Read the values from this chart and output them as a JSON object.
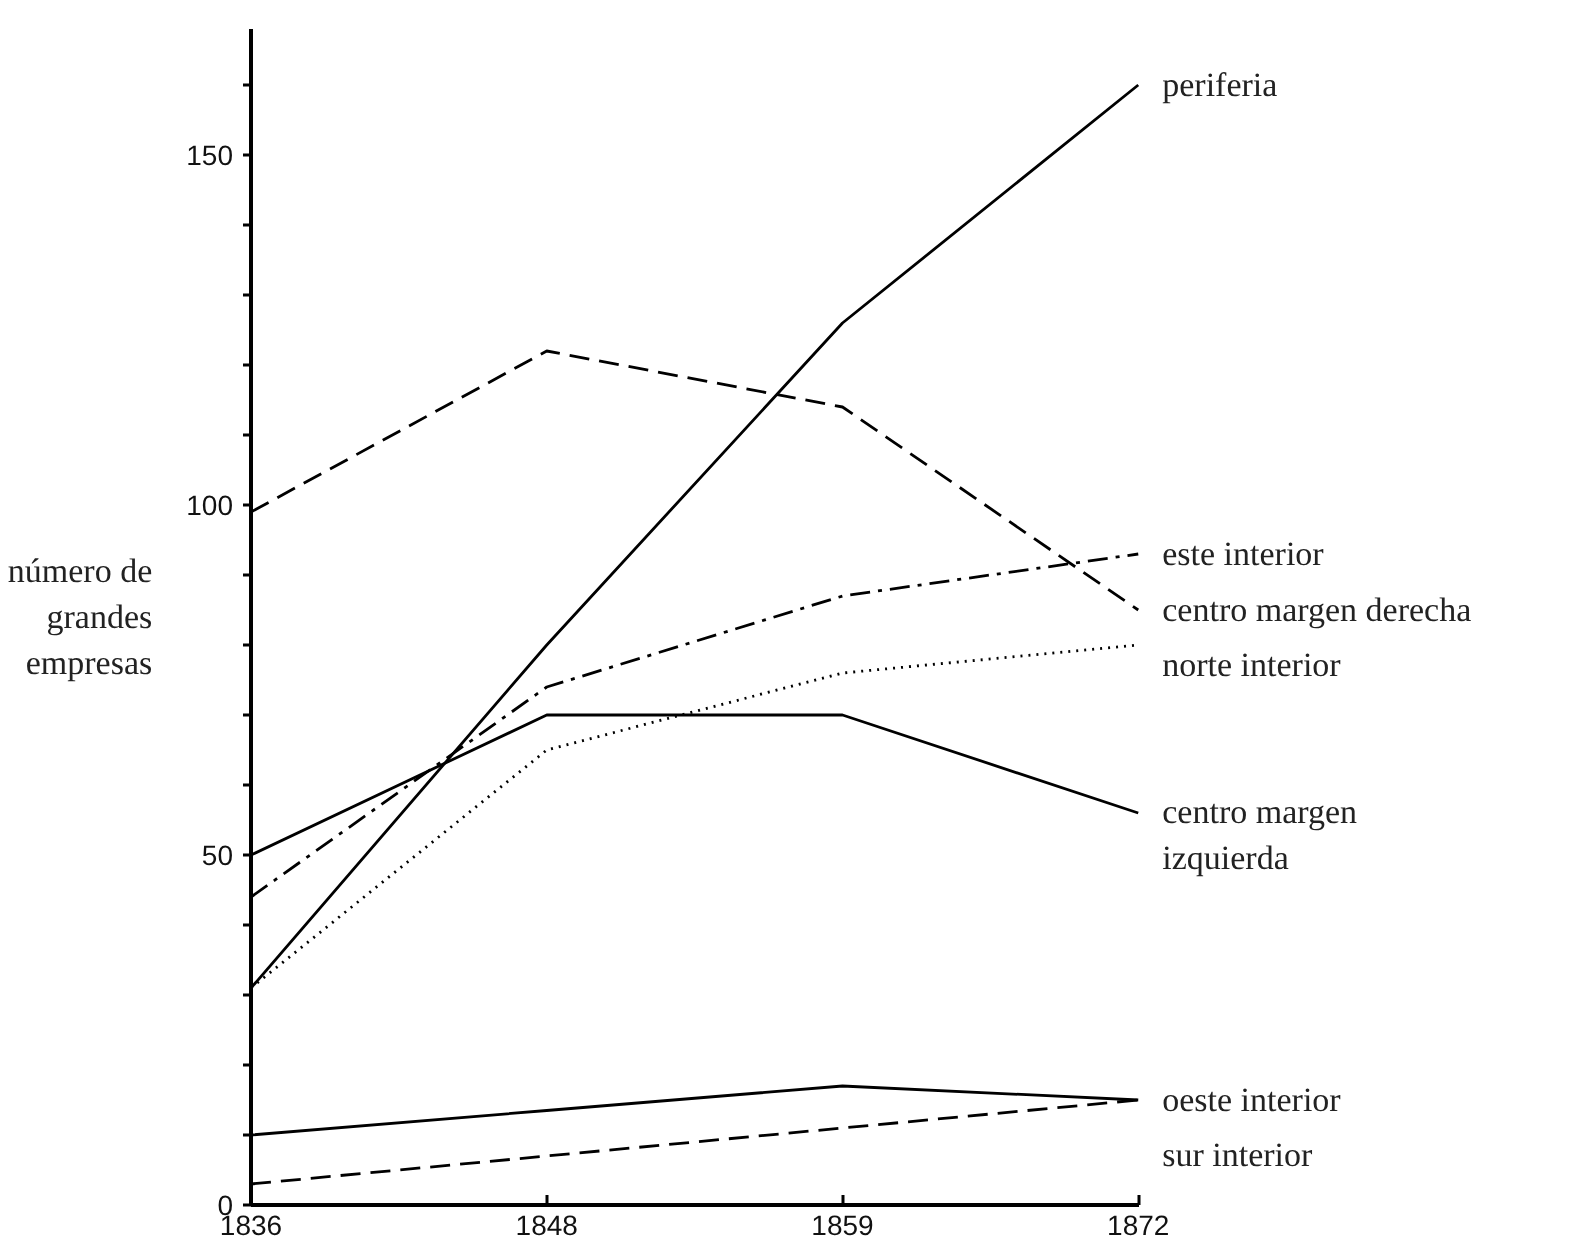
{
  "chart_data": {
    "type": "line",
    "ylabel": "número de grandes empresas",
    "categories": [
      "1836",
      "1848",
      "1859",
      "1872"
    ],
    "ylim": [
      0,
      168
    ],
    "yticks": [
      0,
      {
        "value": 10,
        "label": null
      },
      {
        "value": 20,
        "label": null
      },
      {
        "value": 30,
        "label": null
      },
      {
        "value": 40,
        "label": null
      },
      50,
      {
        "value": 60,
        "label": null
      },
      {
        "value": 70,
        "label": null
      },
      {
        "value": 80,
        "label": null
      },
      {
        "value": 90,
        "label": null
      },
      100,
      {
        "value": 110,
        "label": null
      },
      {
        "value": 120,
        "label": null
      },
      {
        "value": 130,
        "label": null
      },
      {
        "value": 140,
        "label": null
      },
      150,
      {
        "value": 160,
        "label": null
      }
    ],
    "grid": false,
    "marker": "none",
    "series": [
      {
        "name": "periferia",
        "color": "#000000",
        "line_style": "solid",
        "values": [
          31,
          80,
          126,
          160
        ]
      },
      {
        "name": "este interior",
        "color": "#000000",
        "line_style": "dashdot",
        "values": [
          44,
          74,
          87,
          93
        ]
      },
      {
        "name": "centro margen derecha",
        "color": "#000000",
        "line_style": "dashed",
        "values": [
          99,
          122,
          114,
          85
        ]
      },
      {
        "name": "norte interior",
        "color": "#000000",
        "line_style": "dotted",
        "values": [
          31,
          65,
          76,
          80
        ]
      },
      {
        "name": "centro margen izquierda",
        "color": "#000000",
        "line_style": "solid",
        "values": [
          50,
          70,
          70,
          56
        ]
      },
      {
        "name": "oeste interior",
        "color": "#000000",
        "line_style": "solid",
        "values": [
          10,
          13.5,
          17,
          15
        ]
      },
      {
        "name": "sur interior",
        "color": "#000000",
        "line_style": "dashed",
        "values": [
          3,
          7,
          11,
          15
        ]
      }
    ]
  }
}
